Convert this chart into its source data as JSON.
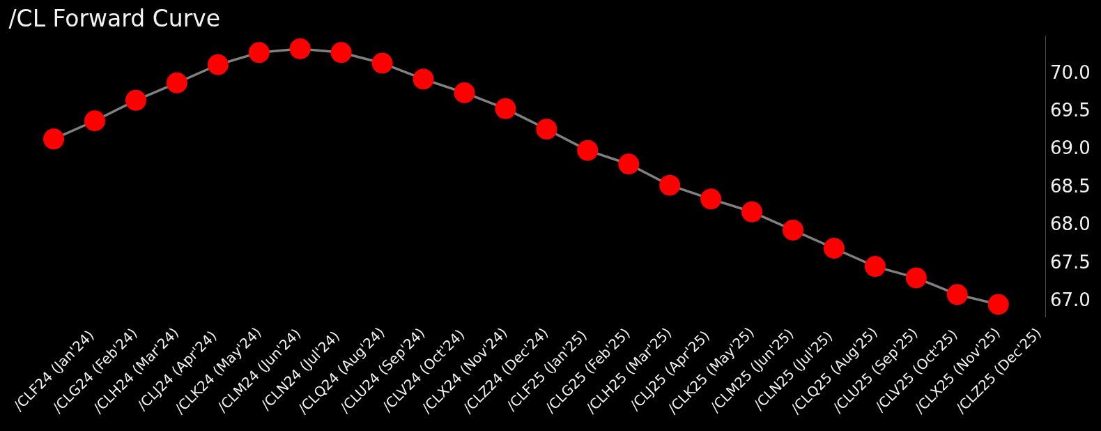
{
  "chart_data": {
    "type": "line",
    "title": "/CL Forward Curve",
    "categories": [
      "/CLF24 (Jan'24)",
      "/CLG24 (Feb'24)",
      "/CLH24 (Mar'24)",
      "/CLJ24 (Apr'24)",
      "/CLK24 (May'24)",
      "/CLM24 (Jun'24)",
      "/CLN24 (Jul'24)",
      "/CLQ24 (Aug'24)",
      "/CLU24 (Sep'24)",
      "/CLV24 (Oct'24)",
      "/CLX24 (Nov'24)",
      "/CLZ24 (Dec'24)",
      "/CLF25 (Jan'25)",
      "/CLG25 (Feb'25)",
      "/CLH25 (Mar'25)",
      "/CLJ25 (Apr'25)",
      "/CLK25 (May'25)",
      "/CLM25 (Jun'25)",
      "/CLN25 (Jul'25)",
      "/CLQ25 (Aug'25)",
      "/CLU25 (Sep'25)",
      "/CLV25 (Oct'25)",
      "/CLX25 (Nov'25)",
      "/CLZ25 (Dec'25)"
    ],
    "series": [
      {
        "color": "#808080",
        "colors": [
          "#ff0000",
          "#ff0000",
          "#ff0000",
          "#ff0000",
          "#ff0000",
          "#ff0000",
          "#ff0000",
          "#ff0000",
          "#ff0000",
          "#ff0000",
          "#ff0000",
          "#ff0000",
          "#ff0000",
          "#ff0000",
          "#ff0000",
          "#ff0000",
          "#ff0000",
          "#ff0000",
          "#ff0000",
          "#ff0000",
          "#ff0000",
          "#ff0000",
          "#ff0000",
          "#ff0000"
        ],
        "values": [
          69.12,
          69.36,
          69.63,
          69.86,
          70.1,
          70.26,
          70.31,
          70.26,
          70.12,
          69.91,
          69.73,
          69.52,
          69.25,
          68.97,
          68.79,
          68.51,
          68.33,
          68.16,
          67.92,
          67.68,
          67.44,
          67.29,
          67.07,
          66.94
        ]
      }
    ],
    "ylim": [
      66.77,
      70.48
    ],
    "yticks": [
      {
        "value": 67,
        "label": "67.0"
      },
      {
        "value": 67.5,
        "label": "67.5"
      },
      {
        "value": 68,
        "label": "68.0"
      },
      {
        "value": 68.5,
        "label": "68.5"
      },
      {
        "value": 69,
        "label": "69.0"
      },
      {
        "value": 69.5,
        "label": "69.5"
      },
      {
        "value": 70,
        "label": "70.0"
      }
    ],
    "marker": "circle",
    "line_style": "solid"
  }
}
